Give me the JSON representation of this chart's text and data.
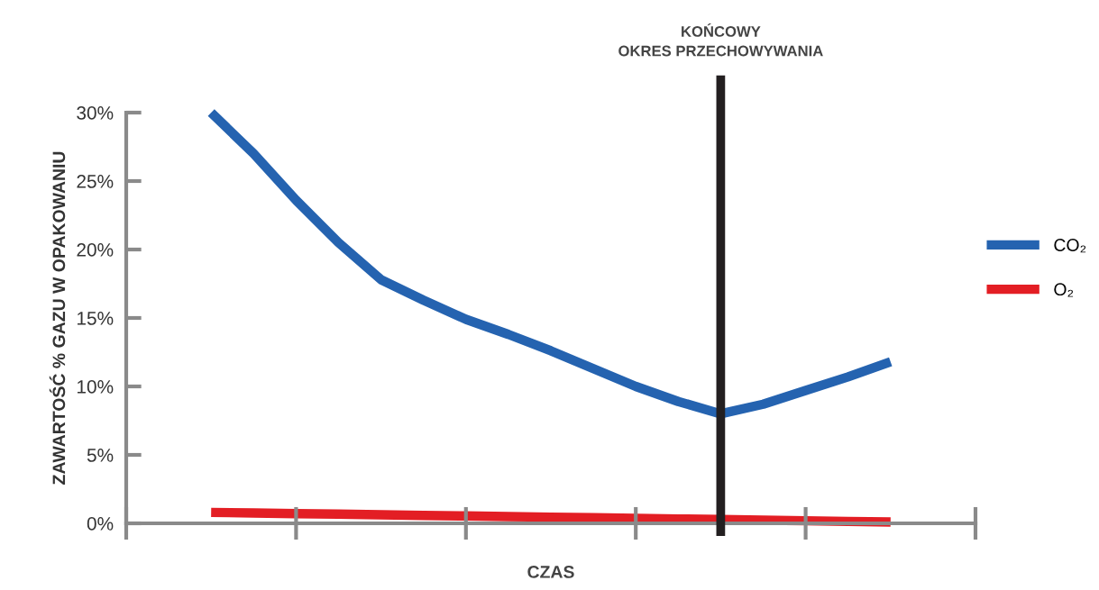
{
  "chart_data": {
    "type": "line",
    "xlabel": "CZAS",
    "ylabel": "ZAWARTOŚĆ % GAZU W OPAKOWANIU",
    "categories": [
      null,
      null,
      null,
      null,
      null,
      null,
      null,
      null,
      null,
      null,
      null,
      null,
      null,
      null,
      null,
      null,
      null,
      null,
      null,
      null,
      null
    ],
    "ylim": [
      0,
      30
    ],
    "yticks": [
      {
        "value": 0,
        "label": "0%"
      },
      {
        "value": 5,
        "label": "5%"
      },
      {
        "value": 10,
        "label": "10%"
      },
      {
        "value": 15,
        "label": "15%"
      },
      {
        "value": 20,
        "label": "20%"
      },
      {
        "value": 25,
        "label": "25%"
      },
      {
        "value": 30,
        "label": "30%"
      }
    ],
    "grid": false,
    "legend": "right",
    "marker": "none",
    "line_style": "solid",
    "series": [
      {
        "name": "CO₂",
        "color": "#2563b0",
        "values": [
          null,
          null,
          30.0,
          27.0,
          23.6,
          20.5,
          17.8,
          16.3,
          14.9,
          13.8,
          12.6,
          11.3,
          10.0,
          8.9,
          8.0,
          8.7,
          9.7,
          10.7,
          11.8,
          null,
          null
        ]
      },
      {
        "name": "O₂",
        "color": "#e31e24",
        "values": [
          null,
          null,
          0.8,
          0.76,
          0.71,
          0.67,
          0.63,
          0.58,
          0.54,
          0.49,
          0.45,
          0.41,
          0.36,
          0.32,
          0.28,
          0.23,
          0.19,
          0.14,
          0.1,
          null,
          null
        ]
      }
    ],
    "annotations": [
      "KOŃCOWY\nOKRES PRZECHOWYWANIA"
    ]
  }
}
